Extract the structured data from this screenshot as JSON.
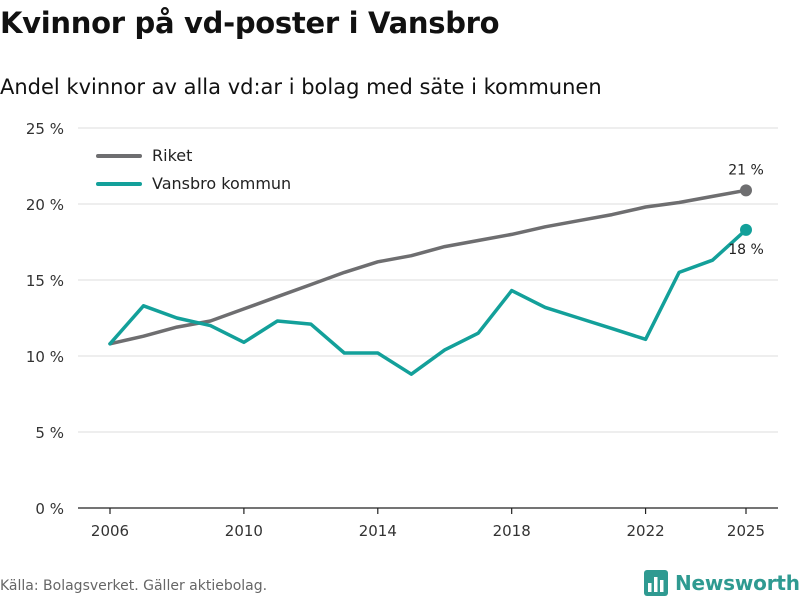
{
  "title": "Kvinnor på vd-poster i Vansbro",
  "subtitle": "Andel kvinnor av alla vd:ar i bolag med säte i kommunen",
  "source": "Källa: Bolagsverket. Gäller aktiebolag.",
  "brand": {
    "name": "Newsworthy",
    "icon": "bar-chart-logo-icon",
    "color": "#2f9a91"
  },
  "chart_data": {
    "type": "line",
    "ylim": [
      0,
      25
    ],
    "xlim": [
      2006,
      2025
    ],
    "y_ticks": [
      0,
      5,
      10,
      15,
      20,
      25
    ],
    "y_tick_labels": [
      "0 %",
      "5 %",
      "10 %",
      "15 %",
      "20 %",
      "25 %"
    ],
    "x_ticks": [
      2006,
      2010,
      2014,
      2018,
      2022,
      2025
    ],
    "x_tick_labels": [
      "2006",
      "2010",
      "2014",
      "2018",
      "2022",
      "2025"
    ],
    "grid": true,
    "legend": "top-left",
    "x": [
      2006,
      2007,
      2008,
      2009,
      2010,
      2011,
      2012,
      2013,
      2014,
      2015,
      2016,
      2017,
      2018,
      2019,
      2020,
      2021,
      2022,
      2023,
      2024,
      2025
    ],
    "series": [
      {
        "name": "Riket",
        "color": "#6e6e70",
        "values": [
          10.8,
          11.3,
          11.9,
          12.3,
          13.1,
          13.9,
          14.7,
          15.5,
          16.2,
          16.6,
          17.2,
          17.6,
          18.0,
          18.5,
          18.9,
          19.3,
          19.8,
          20.1,
          20.5,
          20.9
        ],
        "end_label": "21 %"
      },
      {
        "name": "Vansbro kommun",
        "color": "#13a09a",
        "values": [
          10.8,
          13.3,
          12.5,
          12.0,
          10.9,
          12.3,
          12.1,
          10.2,
          10.2,
          8.8,
          10.4,
          11.5,
          14.3,
          13.2,
          12.5,
          11.8,
          11.1,
          15.5,
          16.3,
          18.3
        ],
        "end_label": "18 %"
      }
    ]
  }
}
